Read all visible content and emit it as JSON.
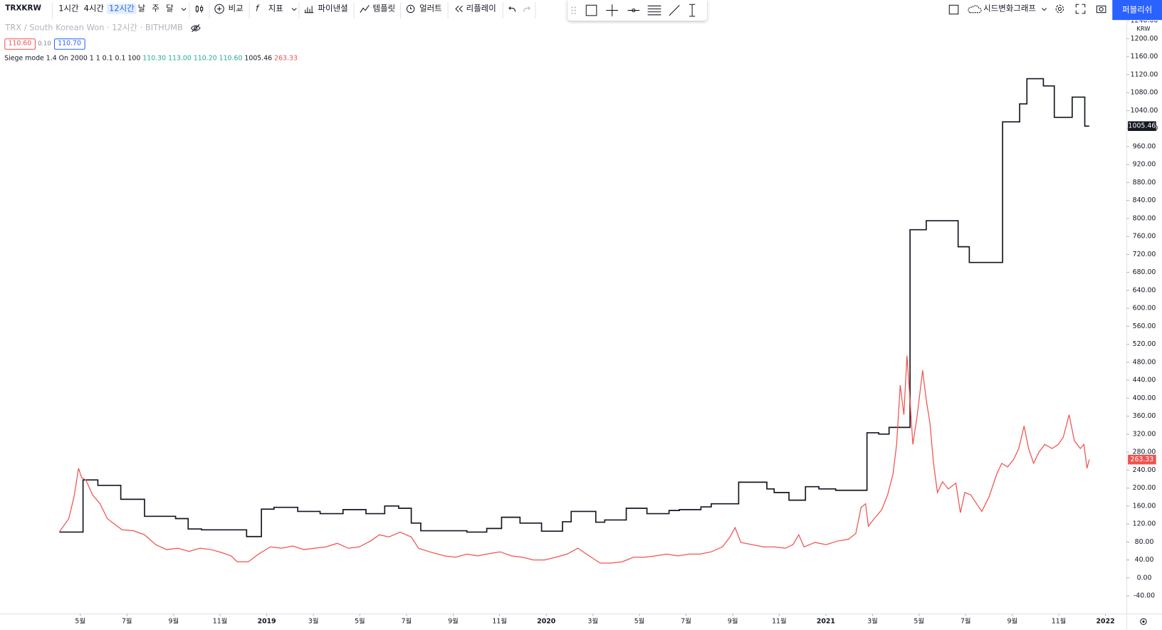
{
  "toolbar": {
    "symbol": "TRXKRW",
    "intervals": [
      "1시간",
      "4시간",
      "12시간",
      "날",
      "주",
      "달"
    ],
    "compare": "비교",
    "indicators": "지표",
    "financials": "파이낸셜",
    "templates": "템플릿",
    "alerts": "얼러트",
    "replay": "리플레이",
    "layout": "시드변화그래프",
    "publish": "퍼블리쉬"
  },
  "symbol_info": {
    "description": "TRX / South Korean Won · 12시간 · BITHUMB",
    "bid": "110.60",
    "spread": "0.10",
    "ask": "110.70",
    "currency": "KRW"
  },
  "indicator": {
    "name": "Siege mode 1.4",
    "params": "On 2000 1 1 0.1 0.1 100",
    "ohlc": [
      "110.30",
      "113.00",
      "110.20",
      "110.60"
    ]
  },
  "chart_data": {
    "type": "line",
    "log_scale": false,
    "grid": false,
    "xlim": [
      2018.046,
      2022.075
    ],
    "xticks": [
      {
        "value": 2018.333,
        "label": "5월"
      },
      {
        "value": 2018.5,
        "label": "7월"
      },
      {
        "value": 2018.667,
        "label": "9월"
      },
      {
        "value": 2018.833,
        "label": "11월"
      },
      2019,
      {
        "value": 2019.167,
        "label": "3월"
      },
      {
        "value": 2019.333,
        "label": "5월"
      },
      {
        "value": 2019.5,
        "label": "7월"
      },
      {
        "value": 2019.667,
        "label": "9월"
      },
      {
        "value": 2019.833,
        "label": "11월"
      },
      2020,
      {
        "value": 2020.167,
        "label": "3월"
      },
      {
        "value": 2020.333,
        "label": "5월"
      },
      {
        "value": 2020.5,
        "label": "7월"
      },
      {
        "value": 2020.667,
        "label": "9월"
      },
      {
        "value": 2020.833,
        "label": "11월"
      },
      2021,
      {
        "value": 2021.167,
        "label": "3월"
      },
      {
        "value": 2021.333,
        "label": "5월"
      },
      {
        "value": 2021.5,
        "label": "7월"
      },
      {
        "value": 2021.667,
        "label": "9월"
      },
      {
        "value": 2021.833,
        "label": "11월"
      },
      2022
    ],
    "ylim": [
      -80,
      1240
    ],
    "yticks": [
      {
        "value": -40,
        "label": "-40.00"
      },
      {
        "value": 0,
        "label": "0.00"
      },
      {
        "value": 40,
        "label": "40.00"
      },
      {
        "value": 80,
        "label": "80.00"
      },
      {
        "value": 120,
        "label": "120.00"
      },
      {
        "value": 160,
        "label": "160.00"
      },
      {
        "value": 200,
        "label": "200.00"
      },
      {
        "value": 240,
        "label": "240.00"
      },
      {
        "value": 280,
        "label": "280.00"
      },
      {
        "value": 320,
        "label": "320.00"
      },
      {
        "value": 360,
        "label": "360.00"
      },
      {
        "value": 400,
        "label": "400.00"
      },
      {
        "value": 440,
        "label": "440.00"
      },
      {
        "value": 480,
        "label": "480.00"
      },
      {
        "value": 520,
        "label": "520.00"
      },
      {
        "value": 560,
        "label": "560.00"
      },
      {
        "value": 600,
        "label": "600.00"
      },
      {
        "value": 640,
        "label": "640.00"
      },
      {
        "value": 680,
        "label": "680.00"
      },
      {
        "value": 720,
        "label": "720.00"
      },
      {
        "value": 760,
        "label": "760.00"
      },
      {
        "value": 800,
        "label": "800.00"
      },
      {
        "value": 840,
        "label": "840.00"
      },
      {
        "value": 880,
        "label": "880.00"
      },
      {
        "value": 920,
        "label": "920.00"
      },
      {
        "value": 960,
        "label": "960.00"
      },
      {
        "value": 1000,
        "label": "1000.00"
      },
      {
        "value": 1040,
        "label": "1040.00"
      },
      {
        "value": 1080,
        "label": "1080.00"
      },
      {
        "value": 1120,
        "label": "1120.00"
      },
      {
        "value": 1160,
        "label": "1160.00"
      },
      {
        "value": 1200,
        "label": "1200.00"
      },
      {
        "value": 1240,
        "label": "1240.00"
      }
    ],
    "series": [
      {
        "color": "#131722",
        "step": "after",
        "x": [
          2018.258,
          2018.343,
          2018.396,
          2018.478,
          2018.563,
          2018.674,
          2018.719,
          2018.767,
          2018.928,
          2018.981,
          2019.026,
          2019.111,
          2019.191,
          2019.273,
          2019.355,
          2019.422,
          2019.472,
          2019.517,
          2019.551,
          2019.716,
          2019.787,
          2019.84,
          2019.906,
          2019.983,
          2020.058,
          2020.089,
          2020.177,
          2020.209,
          2020.286,
          2020.36,
          2020.439,
          2020.476,
          2020.553,
          2020.59,
          2020.688,
          2020.789,
          2020.815,
          2020.868,
          2020.927,
          2020.975,
          2021.035,
          2021.147,
          2021.189,
          2021.226,
          2021.301,
          2021.359,
          2021.473,
          2021.513,
          2021.632,
          2021.693,
          2021.719,
          2021.778,
          2021.817,
          2021.881,
          2021.926,
          2021.942
        ],
        "values": [
          102,
          218,
          206,
          175,
          137,
          132,
          109,
          107,
          92,
          153,
          157,
          148,
          143,
          152,
          143,
          160,
          155,
          122,
          105,
          102,
          110,
          135,
          122,
          104,
          125,
          148,
          124,
          129,
          155,
          143,
          150,
          152,
          158,
          165,
          213,
          198,
          190,
          173,
          203,
          198,
          195,
          323,
          320,
          335,
          775,
          795,
          737,
          702,
          1015,
          1055,
          1111,
          1095,
          1025,
          1070,
          1005.46,
          1005.46
        ]
      },
      {
        "color": "#ef5350",
        "step": "none",
        "x": [
          2018.258,
          2018.292,
          2018.311,
          2018.327,
          2018.338,
          2018.353,
          2018.377,
          2018.404,
          2018.43,
          2018.457,
          2018.483,
          2018.523,
          2018.563,
          2018.603,
          2018.642,
          2018.682,
          2018.722,
          2018.762,
          2018.801,
          2018.841,
          2018.873,
          2018.894,
          2018.934,
          2018.973,
          2019.013,
          2019.053,
          2019.093,
          2019.133,
          2019.172,
          2019.212,
          2019.252,
          2019.292,
          2019.331,
          2019.371,
          2019.403,
          2019.437,
          2019.477,
          2019.517,
          2019.543,
          2019.583,
          2019.636,
          2019.676,
          2019.716,
          2019.755,
          2019.795,
          2019.835,
          2019.875,
          2019.914,
          2019.954,
          2019.994,
          2020.034,
          2020.074,
          2020.113,
          2020.153,
          2020.193,
          2020.232,
          2020.272,
          2020.312,
          2020.352,
          2020.391,
          2020.431,
          2020.471,
          2020.511,
          2020.55,
          2020.59,
          2020.63,
          2020.657,
          2020.675,
          2020.696,
          2020.736,
          2020.776,
          2020.815,
          2020.855,
          2020.882,
          2020.903,
          2020.922,
          2020.961,
          2021.001,
          2021.041,
          2021.081,
          2021.107,
          2021.126,
          2021.142,
          2021.152,
          2021.173,
          2021.2,
          2021.221,
          2021.24,
          2021.253,
          2021.266,
          2021.279,
          2021.29,
          2021.301,
          2021.311,
          2021.327,
          2021.346,
          2021.359,
          2021.372,
          2021.385,
          2021.399,
          2021.417,
          2021.438,
          2021.465,
          2021.481,
          2021.497,
          2021.518,
          2021.539,
          2021.558,
          2021.584,
          2021.611,
          2021.629,
          2021.65,
          2021.672,
          2021.69,
          2021.709,
          2021.725,
          2021.743,
          2021.762,
          2021.783,
          2021.809,
          2021.831,
          2021.849,
          2021.87,
          2021.889,
          2021.91,
          2021.923,
          2021.934,
          2021.942
        ],
        "values": [
          102,
          132,
          181,
          244,
          223,
          218,
          185,
          165,
          132,
          119,
          107,
          105,
          96,
          74,
          63,
          66,
          59,
          66,
          63,
          56,
          49,
          36,
          36,
          54,
          69,
          66,
          71,
          63,
          66,
          69,
          77,
          66,
          69,
          82,
          96,
          91,
          102,
          91,
          66,
          58,
          49,
          46,
          53,
          49,
          54,
          58,
          49,
          46,
          40,
          40,
          46,
          53,
          66,
          49,
          33,
          33,
          36,
          46,
          46,
          49,
          53,
          49,
          53,
          53,
          58,
          69,
          91,
          112,
          79,
          74,
          69,
          69,
          66,
          74,
          96,
          69,
          79,
          74,
          82,
          86,
          99,
          157,
          165,
          115,
          132,
          152,
          185,
          231,
          297,
          429,
          363,
          495,
          396,
          297,
          363,
          462,
          396,
          346,
          255,
          190,
          214,
          198,
          211,
          145,
          190,
          185,
          165,
          148,
          181,
          231,
          255,
          247,
          264,
          288,
          338,
          288,
          255,
          280,
          297,
          288,
          297,
          313,
          363,
          305,
          288,
          297,
          244,
          263.33
        ]
      }
    ]
  }
}
